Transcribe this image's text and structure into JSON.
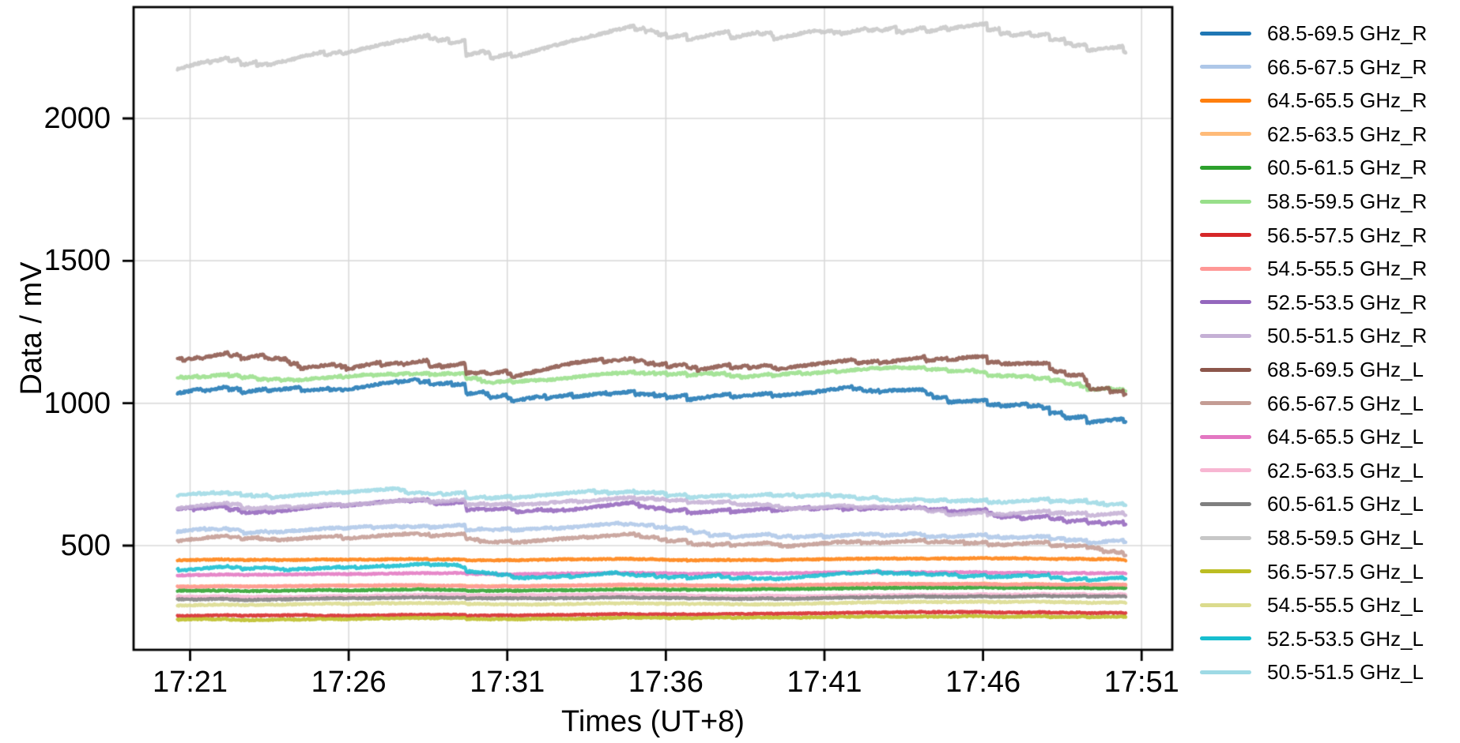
{
  "chart_data": {
    "type": "line",
    "title": "",
    "xlabel": "Times (UT+8)",
    "ylabel": "Data / mV",
    "x_tick_labels": [
      "17:21",
      "17:26",
      "17:31",
      "17:36",
      "17:41",
      "17:46",
      "17:51"
    ],
    "x_tick_minutes": [
      0,
      5,
      10,
      15,
      20,
      25,
      30
    ],
    "y_ticks": [
      500,
      1000,
      1500,
      2000
    ],
    "ylim": [
      134,
      2391
    ],
    "xlim_minutes": [
      -1.78,
      30.97
    ],
    "x_data_range_minutes": [
      -0.4,
      29.5
    ],
    "grid": true,
    "grid_color": "#d8d8d8",
    "spine_color": "#000000",
    "background_color": "#ffffff",
    "legend_position": "right-outside",
    "waypoint_minutes": [
      -0.4,
      2.1,
      4.6,
      7.1,
      9.6,
      12.1,
      14.6,
      17.1,
      19.6,
      22.1,
      24.6,
      27.1,
      29.5
    ],
    "series": [
      {
        "label": "68.5-69.5 GHz_R",
        "color": "#1f77b4",
        "values": [
          1040,
          1045,
          1028,
          1032,
          1018,
          1014,
          1003,
          1000,
          987,
          990,
          960,
          943,
          926
        ],
        "wiggle": 9,
        "fuzz": 4
      },
      {
        "label": "66.5-67.5 GHz_R",
        "color": "#aec7e8",
        "values": [
          552,
          556,
          550,
          548,
          547,
          545,
          547,
          541,
          535,
          531,
          523,
          519,
          516
        ],
        "wiggle": 5,
        "fuzz": 3.5
      },
      {
        "label": "64.5-65.5 GHz_R",
        "color": "#ff7f0e",
        "values": [
          449,
          450,
          450,
          451,
          451,
          452,
          452,
          452,
          453,
          453,
          453,
          454,
          454
        ],
        "wiggle": 0.8,
        "fuzz": 2
      },
      {
        "label": "62.5-63.5 GHz_R",
        "color": "#ffbb78",
        "values": [
          356,
          356,
          357,
          357,
          358,
          358,
          359,
          359,
          360,
          360,
          361,
          361,
          362
        ],
        "wiggle": 0.8,
        "fuzz": 2
      },
      {
        "label": "60.5-61.5 GHz_R",
        "color": "#2ca02c",
        "values": [
          342,
          342,
          343,
          343,
          344,
          344,
          345,
          345,
          346,
          346,
          347,
          348,
          348
        ],
        "wiggle": 0.8,
        "fuzz": 2
      },
      {
        "label": "58.5-59.5 GHz_R",
        "color": "#98df8a",
        "values": [
          1093,
          1097,
          1092,
          1095,
          1090,
          1092,
          1094,
          1097,
          1103,
          1106,
          1094,
          1086,
          1080
        ],
        "wiggle": 5,
        "fuzz": 3.5
      },
      {
        "label": "56.5-57.5 GHz_R",
        "color": "#d62728",
        "values": [
          253,
          254,
          254,
          255,
          256,
          256,
          257,
          258,
          258,
          259,
          260,
          261,
          262
        ],
        "wiggle": 0.8,
        "fuzz": 2
      },
      {
        "label": "54.5-55.5 GHz_R",
        "color": "#ff9896",
        "values": [
          356,
          356,
          357,
          357,
          358,
          358,
          359,
          359,
          360,
          360,
          361,
          361,
          362
        ],
        "wiggle": 0.8,
        "fuzz": 2
      },
      {
        "label": "52.5-53.5 GHz_R",
        "color": "#9467bd",
        "values": [
          631,
          634,
          630,
          627,
          625,
          622,
          626,
          619,
          613,
          610,
          600,
          594,
          590
        ],
        "wiggle": 6,
        "fuzz": 3.5
      },
      {
        "label": "50.5-51.5 GHz_R",
        "color": "#c5b0d5",
        "values": [
          640,
          643,
          639,
          637,
          635,
          634,
          637,
          630,
          624,
          620,
          612,
          609,
          606
        ],
        "wiggle": 5,
        "fuzz": 3.5
      },
      {
        "label": "68.5-69.5 GHz_L",
        "color": "#8c564b",
        "values": [
          1162,
          1170,
          1152,
          1158,
          1146,
          1152,
          1140,
          1136,
          1126,
          1112,
          1112,
          1078,
          1042
        ],
        "wiggle": 9,
        "fuzz": 4
      },
      {
        "label": "66.5-67.5 GHz_L",
        "color": "#c49c94",
        "values": [
          519,
          523,
          516,
          514,
          511,
          508,
          511,
          505,
          499,
          496,
          489,
          485,
          482
        ],
        "wiggle": 5,
        "fuzz": 3.5
      },
      {
        "label": "64.5-65.5 GHz_L",
        "color": "#e377c2",
        "values": [
          396,
          397,
          397,
          398,
          398,
          399,
          400,
          400,
          401,
          401,
          402,
          403,
          403
        ],
        "wiggle": 0.8,
        "fuzz": 2
      },
      {
        "label": "62.5-63.5 GHz_L",
        "color": "#f7b6d2",
        "values": [
          323,
          323,
          324,
          324,
          325,
          325,
          326,
          326,
          327,
          327,
          328,
          328,
          329
        ],
        "wiggle": 0.8,
        "fuzz": 2
      },
      {
        "label": "60.5-61.5 GHz_L",
        "color": "#7f7f7f",
        "values": [
          312,
          312,
          313,
          313,
          314,
          314,
          315,
          315,
          316,
          316,
          317,
          318,
          318
        ],
        "wiggle": 1,
        "fuzz": 2.2
      },
      {
        "label": "58.5-59.5 GHz_L",
        "color": "#c7c7c7",
        "values": [
          2180,
          2195,
          2205,
          2215,
          2222,
          2240,
          2258,
          2262,
          2268,
          2275,
          2290,
          2272,
          2245
        ],
        "wiggle": 11,
        "fuzz": 4
      },
      {
        "label": "56.5-57.5 GHz_L",
        "color": "#bcbd22",
        "values": [
          242,
          243,
          243,
          244,
          245,
          245,
          246,
          247,
          248,
          248,
          249,
          250,
          251
        ],
        "wiggle": 1,
        "fuzz": 2.2
      },
      {
        "label": "54.5-55.5 GHz_L",
        "color": "#dbdb8d",
        "values": [
          290,
          291,
          291,
          292,
          292,
          293,
          294,
          294,
          295,
          296,
          296,
          297,
          298
        ],
        "wiggle": 1,
        "fuzz": 2.2
      },
      {
        "label": "52.5-53.5 GHz_L",
        "color": "#17becf",
        "values": [
          420,
          422,
          418,
          419,
          416,
          413,
          415,
          412,
          408,
          407,
          402,
          400,
          398
        ],
        "wiggle": 4,
        "fuzz": 3
      },
      {
        "label": "50.5-51.5 GHz_L",
        "color": "#9edae5",
        "values": [
          678,
          681,
          677,
          675,
          676,
          674,
          676,
          668,
          662,
          658,
          651,
          648,
          645
        ],
        "wiggle": 5,
        "fuzz": 3.5
      }
    ]
  }
}
